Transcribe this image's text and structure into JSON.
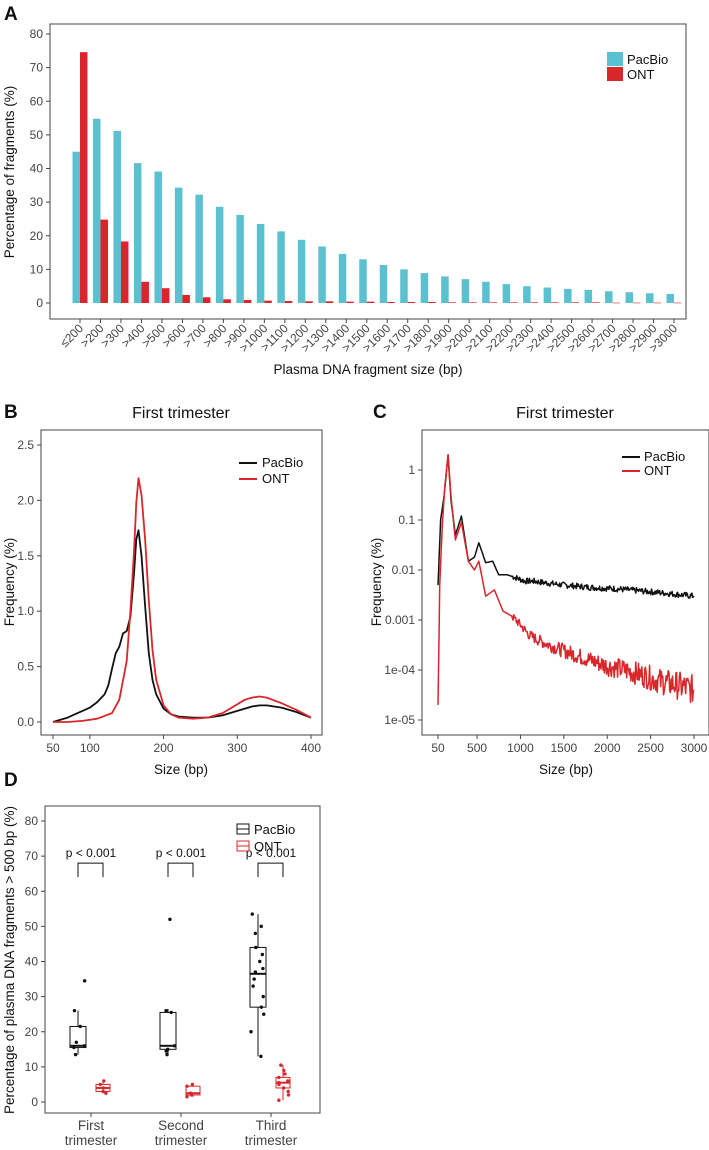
{
  "colors": {
    "pacbio_bar": "#5BC0CF",
    "ont": "#D9262B",
    "pacbio_line": "#111111"
  },
  "chart_data": [
    {
      "panel": "A",
      "type": "bar",
      "xlabel": "Plasma DNA fragment size (bp)",
      "ylabel": "Percentage of fragments (%)",
      "ylim": [
        0,
        80
      ],
      "yticks": [
        0,
        10,
        20,
        30,
        40,
        50,
        60,
        70,
        80
      ],
      "legend_position": "top-right",
      "categories": [
        "≤200",
        ">200",
        ">300",
        ">400",
        ">500",
        ">600",
        ">700",
        ">800",
        ">900",
        ">1000",
        ">1100",
        ">1200",
        ">1300",
        ">1400",
        ">1500",
        ">1600",
        ">1700",
        ">1800",
        ">1900",
        ">2000",
        ">2100",
        ">2200",
        ">2300",
        ">2400",
        ">2500",
        ">2600",
        ">2700",
        ">2800",
        ">2900",
        ">3000"
      ],
      "series": [
        {
          "name": "PacBio",
          "values": [
            45,
            54.8,
            51.2,
            41.6,
            39.1,
            34.3,
            32.2,
            28.6,
            26.2,
            23.5,
            21.3,
            18.8,
            16.8,
            14.6,
            13,
            11.3,
            10,
            8.9,
            7.9,
            7.1,
            6.3,
            5.6,
            5,
            4.6,
            4.2,
            3.9,
            3.5,
            3.2,
            2.9,
            2.7
          ]
        },
        {
          "name": "ONT",
          "values": [
            74.6,
            24.8,
            18.3,
            6.3,
            4.4,
            2.4,
            1.7,
            1.1,
            0.9,
            0.7,
            0.6,
            0.5,
            0.5,
            0.4,
            0.4,
            0.3,
            0.3,
            0.3,
            0.2,
            0.2,
            0.2,
            0.2,
            0.2,
            0.2,
            0.2,
            0.2,
            0.1,
            0.1,
            0.1,
            0.1
          ]
        }
      ]
    },
    {
      "panel": "B",
      "type": "line",
      "title": "First trimester",
      "xlabel": "Size (bp)",
      "ylabel": "Frequency (%)",
      "xlim": [
        50,
        400
      ],
      "ylim": [
        0,
        2.5
      ],
      "xticks": [
        50,
        100,
        200,
        300,
        400
      ],
      "yticks": [
        0.0,
        0.5,
        1.0,
        1.5,
        2.0,
        2.5
      ],
      "ytick_labels": [
        "0.0",
        "0.5",
        "1.0",
        "1.5",
        "2.0",
        "2.5"
      ],
      "legend_position": "top-right",
      "series": [
        {
          "name": "PacBio",
          "x": [
            50,
            60,
            70,
            80,
            90,
            100,
            110,
            120,
            125,
            130,
            135,
            140,
            145,
            150,
            155,
            160,
            163,
            166,
            170,
            175,
            180,
            185,
            190,
            200,
            210,
            220,
            240,
            260,
            280,
            300,
            320,
            330,
            340,
            360,
            380,
            400
          ],
          "y": [
            0.0,
            0.02,
            0.04,
            0.07,
            0.1,
            0.13,
            0.18,
            0.25,
            0.33,
            0.48,
            0.62,
            0.68,
            0.8,
            0.82,
            0.95,
            1.35,
            1.65,
            1.73,
            1.5,
            1.05,
            0.62,
            0.38,
            0.25,
            0.12,
            0.07,
            0.05,
            0.04,
            0.04,
            0.06,
            0.1,
            0.14,
            0.15,
            0.15,
            0.13,
            0.09,
            0.04
          ]
        },
        {
          "name": "ONT",
          "x": [
            50,
            70,
            90,
            110,
            130,
            140,
            150,
            155,
            160,
            163,
            166,
            170,
            175,
            180,
            185,
            190,
            200,
            210,
            220,
            240,
            260,
            280,
            300,
            310,
            320,
            330,
            340,
            360,
            380,
            400
          ],
          "y": [
            0.0,
            0.0,
            0.01,
            0.03,
            0.08,
            0.2,
            0.55,
            1.0,
            1.55,
            1.98,
            2.2,
            2.05,
            1.65,
            1.1,
            0.65,
            0.38,
            0.15,
            0.07,
            0.04,
            0.03,
            0.04,
            0.08,
            0.16,
            0.2,
            0.22,
            0.23,
            0.22,
            0.17,
            0.11,
            0.04
          ]
        }
      ]
    },
    {
      "panel": "C",
      "type": "line",
      "title": "First trimester",
      "xlabel": "Size (bp)",
      "ylabel": "Frequency (%)",
      "yscale": "log",
      "xlim": [
        50,
        3000
      ],
      "ylim": [
        1e-05,
        1
      ],
      "xticks": [
        50,
        500,
        1000,
        1500,
        2000,
        2500,
        3000
      ],
      "yticks": [
        1,
        0.1,
        0.01,
        0.001,
        0.0001,
        1e-05
      ],
      "ytick_labels": [
        "1",
        "0.1",
        "0.01",
        "0.001",
        "1e-04",
        "1e-05"
      ],
      "legend_position": "top-right",
      "series": [
        {
          "name": "PacBio",
          "x": [
            50,
            80,
            120,
            166,
            200,
            250,
            320,
            400,
            470,
            520,
            600,
            680,
            750,
            850,
            950,
            1050,
            1150,
            1300,
            1500,
            1800,
            2100,
            2400,
            2700,
            3000
          ],
          "y": [
            0.005,
            0.1,
            0.3,
            2.0,
            0.25,
            0.05,
            0.12,
            0.015,
            0.018,
            0.035,
            0.014,
            0.015,
            0.008,
            0.008,
            0.007,
            0.006,
            0.006,
            0.0055,
            0.005,
            0.0045,
            0.0042,
            0.0038,
            0.0034,
            0.003
          ]
        },
        {
          "name": "ONT",
          "x": [
            50,
            70,
            100,
            130,
            166,
            200,
            250,
            320,
            400,
            470,
            520,
            600,
            700,
            800,
            900,
            1000,
            1100,
            1200,
            1400,
            1600,
            1800,
            2000,
            2200,
            2400,
            2600,
            2800,
            3000
          ],
          "y": [
            2e-05,
            0.005,
            0.08,
            0.5,
            2.0,
            0.3,
            0.04,
            0.09,
            0.015,
            0.01,
            0.015,
            0.003,
            0.004,
            0.0015,
            0.0012,
            0.0008,
            0.0005,
            0.0004,
            0.00028,
            0.00021,
            0.00016,
            0.00012,
            0.0001,
            8e-05,
            6e-05,
            5e-05,
            4e-05
          ]
        }
      ]
    },
    {
      "panel": "D",
      "type": "box",
      "ylabel": "Percentage of plasma DNA fragments > 500 bp (%)",
      "ylim": [
        0,
        80
      ],
      "yticks": [
        0,
        10,
        20,
        30,
        40,
        50,
        60,
        70,
        80
      ],
      "categories": [
        "First\ntrimester",
        "Second\ntrimester",
        "Third\ntrimester"
      ],
      "legend_position": "top-right",
      "annotations": [
        "p < 0.001",
        "p < 0.001",
        "p < 0.001"
      ],
      "series": [
        {
          "name": "PacBio",
          "boxes": [
            {
              "min": 13.5,
              "q1": 15.5,
              "median": 16,
              "q3": 21.5,
              "max": 26,
              "points": [
                13.5,
                15.5,
                16,
                17,
                21.5,
                26,
                34.5
              ]
            },
            {
              "min": 13.5,
              "q1": 15,
              "median": 16,
              "q3": 25.5,
              "max": 26.5,
              "points": [
                13.5,
                14.5,
                15,
                16,
                25.5,
                26,
                52
              ]
            },
            {
              "min": 13,
              "q1": 27,
              "median": 36.5,
              "q3": 44,
              "max": 53.5,
              "points": [
                13,
                20,
                25,
                27,
                30,
                33,
                35,
                37,
                38,
                40,
                42,
                44,
                48,
                50,
                53.5
              ]
            }
          ]
        },
        {
          "name": "ONT",
          "boxes": [
            {
              "min": 2.5,
              "q1": 3,
              "median": 4,
              "q3": 5,
              "max": 6,
              "points": [
                2.5,
                3,
                4,
                5,
                6
              ]
            },
            {
              "min": 1.5,
              "q1": 2,
              "median": 2.5,
              "q3": 4.5,
              "max": 5,
              "points": [
                1.5,
                2,
                2.5,
                4.5,
                5
              ]
            },
            {
              "min": 0.5,
              "q1": 4,
              "median": 5.5,
              "q3": 7,
              "max": 10.5,
              "points": [
                0.5,
                2,
                3,
                4,
                5,
                5.5,
                6,
                7,
                8,
                9,
                10.5
              ]
            }
          ]
        }
      ]
    }
  ],
  "panels": {
    "a": {
      "letter": "A",
      "xlabel": "Plasma DNA fragment size (bp)",
      "ylabel": "Percentage of fragments (%)",
      "legend": [
        "PacBio",
        "ONT"
      ]
    },
    "b": {
      "letter": "B",
      "title": "First trimester",
      "xlabel": "Size (bp)",
      "ylabel": "Frequency (%)",
      "legend": [
        "PacBio",
        "ONT"
      ]
    },
    "c": {
      "letter": "C",
      "title": "First trimester",
      "xlabel": "Size (bp)",
      "ylabel": "Frequency (%)",
      "legend": [
        "PacBio",
        "ONT"
      ]
    },
    "d": {
      "letter": "D",
      "ylabel": "Percentage of plasma DNA fragments > 500 bp (%)",
      "legend": [
        "PacBio",
        "ONT"
      ]
    }
  }
}
